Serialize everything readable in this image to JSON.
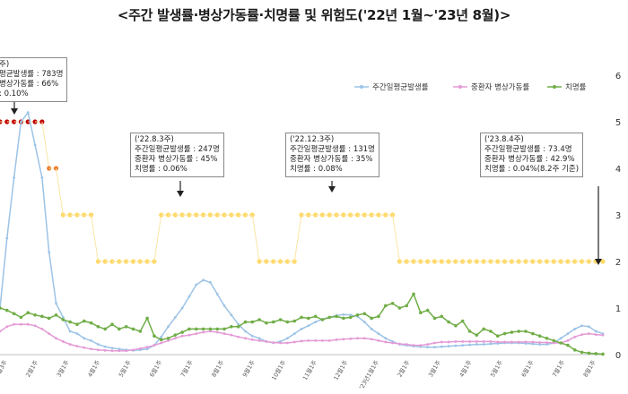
{
  "title": "<주간 발생률·병상가동률·치명률 및 위험도('22년 1월~'23년 8월)>",
  "chart_data": {
    "type": "line",
    "legend": [
      "주간일평균발생률",
      "중환자 병상가동률",
      "치명률"
    ],
    "legend_position": "top",
    "series_colors": [
      "#9cc3e6",
      "#e49ad6",
      "#70ad47",
      "#ffd966",
      "#c00000",
      "#ed7d31"
    ],
    "y_right_ticks": [
      "0",
      "1",
      "2",
      "3",
      "4",
      "5",
      "6"
    ],
    "y_right_range": [
      0,
      6
    ],
    "x_tick_labels": [
      "1월3주",
      "2월1주",
      "3월1주",
      "4월1주",
      "5월1주",
      "6월1주",
      "7월1주",
      "8월1주",
      "9월1주",
      "10월1주",
      "11월1주",
      "12월1주",
      "'23년1월1주",
      "2월1주",
      "3월1주",
      "4월1주",
      "5월1주",
      "6월1주",
      "7월1주",
      "8월1주"
    ],
    "series": [
      {
        "name": "주간일평균발생률",
        "values": [
          1.0,
          2.5,
          3.8,
          5.0,
          5.2,
          4.5,
          3.8,
          2.2,
          1.1,
          0.8,
          0.5,
          0.45,
          0.35,
          0.3,
          0.22,
          0.17,
          0.14,
          0.12,
          0.1,
          0.09,
          0.1,
          0.12,
          0.2,
          0.38,
          0.6,
          0.8,
          1.0,
          1.25,
          1.5,
          1.6,
          1.55,
          1.3,
          1.05,
          0.85,
          0.65,
          0.5,
          0.4,
          0.35,
          0.28,
          0.25,
          0.28,
          0.35,
          0.45,
          0.55,
          0.62,
          0.7,
          0.76,
          0.8,
          0.84,
          0.86,
          0.85,
          0.82,
          0.7,
          0.55,
          0.45,
          0.35,
          0.28,
          0.22,
          0.2,
          0.18,
          0.17,
          0.16,
          0.16,
          0.17,
          0.18,
          0.19,
          0.2,
          0.21,
          0.22,
          0.22,
          0.23,
          0.24,
          0.25,
          0.25,
          0.25,
          0.24,
          0.23,
          0.22,
          0.22,
          0.25,
          0.35,
          0.45,
          0.55,
          0.62,
          0.6,
          0.5,
          0.45
        ]
      },
      {
        "name": "중환자 병상가동률",
        "values": [
          0.5,
          0.6,
          0.65,
          0.65,
          0.65,
          0.62,
          0.55,
          0.45,
          0.35,
          0.28,
          0.22,
          0.18,
          0.15,
          0.12,
          0.1,
          0.09,
          0.08,
          0.08,
          0.08,
          0.1,
          0.13,
          0.16,
          0.2,
          0.25,
          0.3,
          0.35,
          0.4,
          0.42,
          0.45,
          0.48,
          0.5,
          0.48,
          0.45,
          0.42,
          0.38,
          0.35,
          0.32,
          0.3,
          0.28,
          0.26,
          0.25,
          0.25,
          0.27,
          0.29,
          0.3,
          0.3,
          0.3,
          0.3,
          0.32,
          0.33,
          0.34,
          0.35,
          0.35,
          0.33,
          0.3,
          0.27,
          0.25,
          0.23,
          0.22,
          0.2,
          0.2,
          0.22,
          0.25,
          0.27,
          0.27,
          0.28,
          0.28,
          0.28,
          0.28,
          0.28,
          0.28,
          0.27,
          0.27,
          0.27,
          0.27,
          0.27,
          0.27,
          0.26,
          0.26,
          0.25,
          0.25,
          0.3,
          0.38,
          0.43,
          0.45,
          0.43,
          0.42
        ]
      },
      {
        "name": "치명률",
        "values": [
          1.0,
          0.95,
          0.88,
          0.8,
          0.9,
          0.85,
          0.82,
          0.78,
          0.85,
          0.75,
          0.7,
          0.65,
          0.72,
          0.68,
          0.6,
          0.55,
          0.65,
          0.55,
          0.6,
          0.55,
          0.5,
          0.78,
          0.4,
          0.32,
          0.35,
          0.42,
          0.48,
          0.55,
          0.55,
          0.55,
          0.55,
          0.55,
          0.55,
          0.6,
          0.6,
          0.7,
          0.7,
          0.75,
          0.68,
          0.7,
          0.75,
          0.7,
          0.72,
          0.8,
          0.78,
          0.82,
          0.75,
          0.8,
          0.82,
          0.78,
          0.8,
          0.85,
          0.88,
          0.78,
          0.82,
          1.05,
          1.1,
          1.0,
          1.05,
          1.3,
          0.9,
          0.95,
          0.78,
          0.82,
          0.7,
          0.62,
          0.72,
          0.5,
          0.42,
          0.55,
          0.5,
          0.4,
          0.45,
          0.48,
          0.5,
          0.5,
          0.45,
          0.4,
          0.35,
          0.3,
          0.25,
          0.2,
          0.1,
          0.05,
          0.03,
          0.02,
          0.01
        ]
      },
      {
        "name": "위험도",
        "values": [
          5,
          5,
          5,
          5,
          5,
          5,
          5,
          4,
          4,
          3,
          3,
          3,
          3,
          3,
          2,
          2,
          2,
          2,
          2,
          2,
          2,
          2,
          2,
          3,
          3,
          3,
          3,
          3,
          3,
          3,
          3,
          3,
          3,
          3,
          3,
          3,
          3,
          2,
          2,
          2,
          2,
          2,
          2,
          3,
          3,
          3,
          3,
          3,
          3,
          3,
          3,
          3,
          3,
          3,
          3,
          3,
          3,
          2,
          2,
          2,
          2,
          2,
          2,
          2,
          2,
          2,
          2,
          2,
          2,
          2,
          2,
          2,
          2,
          2,
          2,
          2,
          2,
          2,
          2,
          2,
          2,
          2,
          2,
          2,
          2,
          2,
          2
        ]
      }
    ],
    "annotations": [
      [
        "주)",
        "평균발생률 : 783명",
        "병상가동률 : 66%",
        ": 0.10%"
      ],
      [
        "('22.8.3주)",
        "주간일평균발생률 : 247명",
        "중환자 병상가동률 : 45%",
        "치명률 : 0.06%"
      ],
      [
        "('22.12.3주)",
        "주간일평균발생률 : 131명",
        "중환자 병상가동률 : 35%",
        "치명률 : 0.08%"
      ],
      [
        "('23.8.4주)",
        "주간일평균발생률 : 73.4명",
        "중환자 병상가동률 : 42.9%",
        "치명률 : 0.04%(8.2주 기준)"
      ]
    ]
  }
}
